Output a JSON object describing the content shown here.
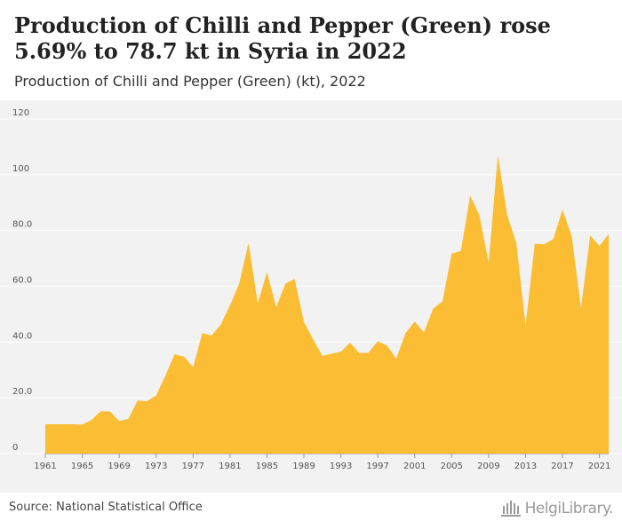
{
  "header": {
    "title": "Production of Chilli and Pepper (Green) rose 5.69% to 78.7 kt in Syria in 2022",
    "subtitle": "Production of Chilli and Pepper (Green) (kt), 2022"
  },
  "footer": {
    "source": "Source: National Statistical Office",
    "logo_text": "HelgiLibrary."
  },
  "colors": {
    "area_fill": "#fbbd34",
    "plot_background": "#f2f2f2",
    "grid": "#ffffff"
  },
  "chart_data": {
    "type": "area",
    "title": "Production of Chilli and Pepper (Green) rose 5.69% to 78.7 kt in Syria in 2022",
    "subtitle": "Production of Chilli and Pepper (Green) (kt), 2022",
    "xlabel": "",
    "ylabel": "",
    "grid": true,
    "legend": "none",
    "xlim": [
      1961,
      2022
    ],
    "ylim": [
      0,
      120
    ],
    "y_ticks": [
      0,
      20,
      40,
      60,
      80,
      100,
      120
    ],
    "y_tick_labels": [
      "0",
      "20.0",
      "40.0",
      "60.0",
      "80.0",
      "100",
      "120"
    ],
    "x_ticks": [
      1961,
      1965,
      1969,
      1973,
      1977,
      1981,
      1985,
      1989,
      1993,
      1997,
      2001,
      2005,
      2009,
      2013,
      2017,
      2021
    ],
    "x_tick_labels": [
      "1961",
      "1965",
      "1969",
      "1973",
      "1977",
      "1981",
      "1985",
      "1989",
      "1993",
      "1997",
      "2001",
      "2005",
      "2009",
      "2013",
      "2017",
      "2021"
    ],
    "series": [
      {
        "x": [
          1961,
          1962,
          1963,
          1964,
          1965,
          1966,
          1967,
          1968,
          1969,
          1970,
          1971,
          1972,
          1973,
          1974,
          1975,
          1976,
          1977,
          1978,
          1979,
          1980,
          1981,
          1982,
          1983,
          1984,
          1985,
          1986,
          1987,
          1988,
          1989,
          1990,
          1991,
          1992,
          1993,
          1994,
          1995,
          1996,
          1997,
          1998,
          1999,
          2000,
          2001,
          2002,
          2003,
          2004,
          2005,
          2006,
          2007,
          2008,
          2009,
          2010,
          2011,
          2012,
          2013,
          2014,
          2015,
          2016,
          2017,
          2018,
          2019,
          2020,
          2021,
          2022
        ],
        "values": [
          10.5,
          10.5,
          10.5,
          10.5,
          10.4,
          12.0,
          15.2,
          15.1,
          11.6,
          12.5,
          19.0,
          18.8,
          20.8,
          28.0,
          35.6,
          34.8,
          31.0,
          43.2,
          42.3,
          46.3,
          53.2,
          61.0,
          75.5,
          53.9,
          65.0,
          52.5,
          61.0,
          62.6,
          47.2,
          41.0,
          35.0,
          35.8,
          36.5,
          39.8,
          36.0,
          36.2,
          40.3,
          38.7,
          34.0,
          43.2,
          47.3,
          43.5,
          52.0,
          54.5,
          71.7,
          72.7,
          92.5,
          85.5,
          68.5,
          107.0,
          85.7,
          75.5,
          46.0,
          75.3,
          75.0,
          76.9,
          87.5,
          77.9,
          52.3,
          78.2,
          74.5,
          78.7
        ]
      }
    ]
  }
}
